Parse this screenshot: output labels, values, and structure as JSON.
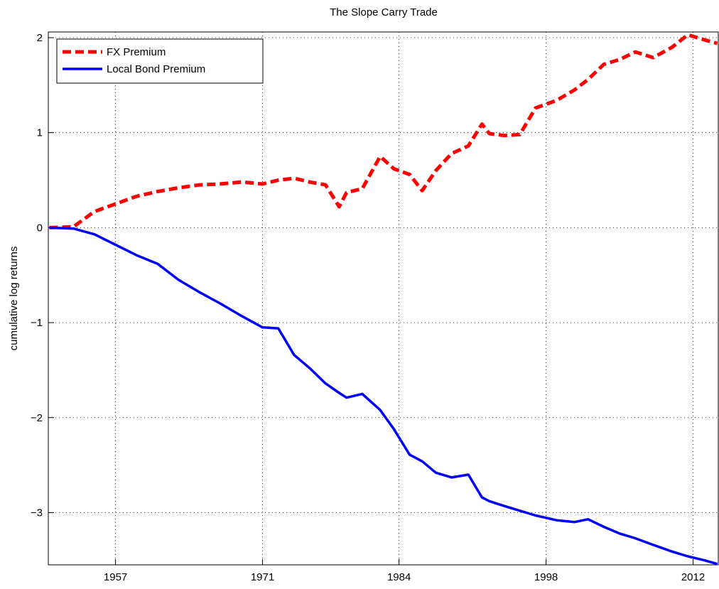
{
  "chart_data": {
    "type": "line",
    "title": "The Slope Carry Trade",
    "y_label": "cumulative log returns",
    "x": [
      1950.7,
      1953,
      1955,
      1957,
      1959,
      1961,
      1963,
      1965,
      1967,
      1969,
      1971,
      1972.5,
      1974,
      1975.5,
      1977,
      1978.3,
      1979,
      1980.5,
      1982.2,
      1983.5,
      1985,
      1986.2,
      1987.5,
      1989,
      1990.6,
      1991.9,
      1992.6,
      1994,
      1995.5,
      1997,
      1999,
      2000.7,
      2002,
      2003.5,
      2005,
      2006.5,
      2008.2,
      2010,
      2011.5,
      2013,
      2014.3
    ],
    "series": [
      {
        "name": "FX Premium",
        "color": "#ff0000",
        "dashed": true,
        "values": [
          0,
          0.01,
          0.17,
          0.25,
          0.33,
          0.38,
          0.42,
          0.45,
          0.46,
          0.48,
          0.46,
          0.5,
          0.52,
          0.48,
          0.45,
          0.22,
          0.37,
          0.41,
          0.75,
          0.62,
          0.56,
          0.39,
          0.6,
          0.78,
          0.86,
          1.09,
          0.99,
          0.97,
          0.98,
          1.26,
          1.34,
          1.45,
          1.56,
          1.72,
          1.77,
          1.85,
          1.79,
          1.9,
          2.03,
          1.98,
          1.94
        ]
      },
      {
        "name": "Local Bond Premium",
        "color": "#0000ff",
        "dashed": false,
        "values": [
          0,
          -0.01,
          -0.07,
          -0.18,
          -0.29,
          -0.38,
          -0.55,
          -0.68,
          -0.8,
          -0.93,
          -1.05,
          -1.06,
          -1.34,
          -1.48,
          -1.64,
          -1.74,
          -1.79,
          -1.75,
          -1.92,
          -2.12,
          -2.39,
          -2.46,
          -2.58,
          -2.63,
          -2.6,
          -2.84,
          -2.88,
          -2.93,
          -2.98,
          -3.03,
          -3.08,
          -3.1,
          -3.07,
          -3.15,
          -3.22,
          -3.27,
          -3.34,
          -3.41,
          -3.46,
          -3.5,
          -3.54
        ]
      }
    ],
    "xlim": [
      1950.6,
      2014.4
    ],
    "xticks": [
      1957,
      1971,
      1984,
      1998,
      2012
    ],
    "ylim": [
      -3.55,
      2.06
    ],
    "yticks": [
      {
        "value": -3,
        "label": "−3"
      },
      {
        "value": -2,
        "label": "−2"
      },
      {
        "value": -1,
        "label": "−1"
      },
      0,
      1,
      2
    ],
    "grid": true,
    "legend": "upper left"
  }
}
